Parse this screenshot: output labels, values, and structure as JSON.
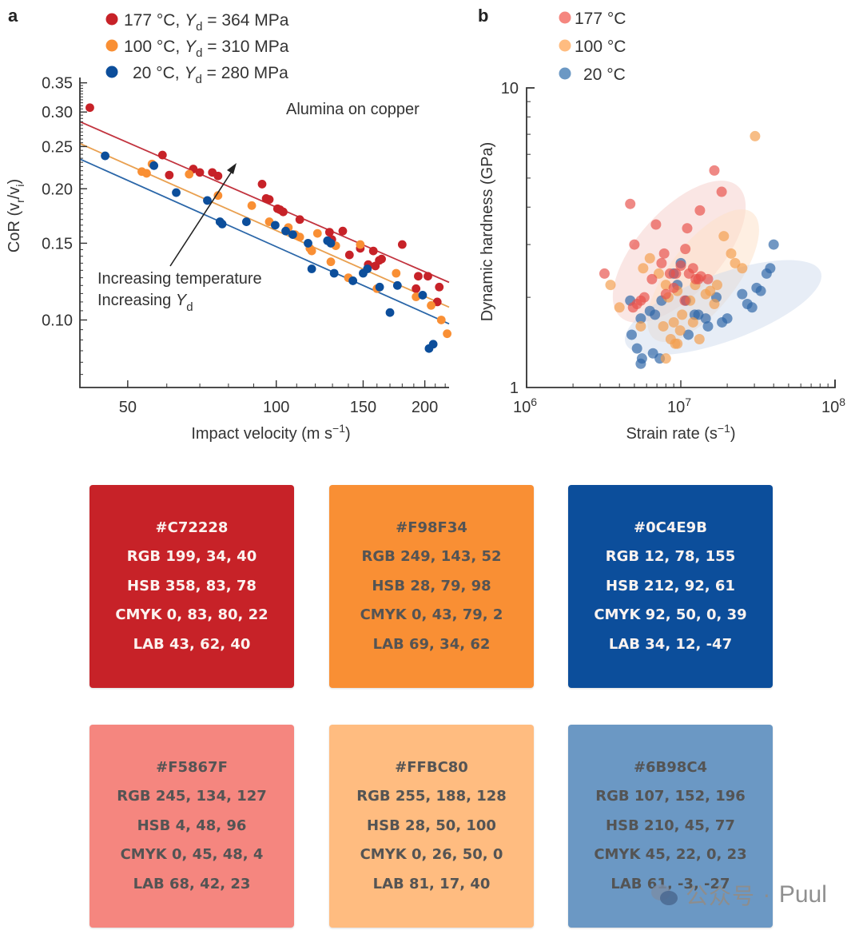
{
  "panel_labels": {
    "a": "a",
    "b": "b"
  },
  "chart_data": [
    {
      "type": "scatter",
      "id": "panel-a",
      "title": "",
      "annotation": "Alumina on copper",
      "arrow_label_1": "Increasing temperature",
      "arrow_label_2_prefix": "Increasing ",
      "arrow_label_2_var": "Y",
      "arrow_label_2_sub": "d",
      "xlabel": "Impact velocity (m s",
      "xlabel_sup": "−1",
      "xlabel_end": ")",
      "ylabel": "CoR (v",
      "ylabel_sub1": "r",
      "ylabel_mid": "/v",
      "ylabel_sub2": "i",
      "ylabel_end": ")",
      "xscale": "log",
      "yscale": "log",
      "xlim": [
        40,
        224
      ],
      "ylim": [
        0.07,
        0.36
      ],
      "xticks": [
        {
          "value": 50,
          "label": "50"
        },
        {
          "value": 100,
          "label": "100"
        },
        {
          "value": 150,
          "label": "150"
        },
        {
          "value": 200,
          "label": "200"
        }
      ],
      "yticks": [
        {
          "value": 0.1,
          "label": "0.10"
        },
        {
          "value": 0.15,
          "label": "0.15"
        },
        {
          "value": 0.2,
          "label": "0.20"
        },
        {
          "value": 0.25,
          "label": "0.25"
        },
        {
          "value": 0.3,
          "label": "0.30"
        },
        {
          "value": 0.35,
          "label": "0.35"
        }
      ],
      "legend_position": "top-left",
      "series": [
        {
          "name": "177 °C, Yd = 364 MPa",
          "legend_temp": "177 °C, ",
          "legend_yield": " = 364 MPa",
          "color": "#C72228",
          "fit": {
            "x": [
              40,
              224
            ],
            "y": [
              0.285,
              0.122
            ]
          },
          "points": [
            [
              41.9,
              0.307
            ],
            [
              58.8,
              0.239
            ],
            [
              60.7,
              0.215
            ],
            [
              67.9,
              0.222
            ],
            [
              70.0,
              0.218
            ],
            [
              74.2,
              0.218
            ],
            [
              76.2,
              0.214
            ],
            [
              93.6,
              0.205
            ],
            [
              95.4,
              0.19
            ],
            [
              96.8,
              0.189
            ],
            [
              100.6,
              0.18
            ],
            [
              101.8,
              0.179
            ],
            [
              103.3,
              0.177
            ],
            [
              111.6,
              0.17
            ],
            [
              128.2,
              0.159
            ],
            [
              129.6,
              0.153
            ],
            [
              136.4,
              0.16
            ],
            [
              140.7,
              0.141
            ],
            [
              148.0,
              0.146
            ],
            [
              153.6,
              0.134
            ],
            [
              157.3,
              0.144
            ],
            [
              158.8,
              0.133
            ],
            [
              161.7,
              0.137
            ],
            [
              163.5,
              0.138
            ],
            [
              180.0,
              0.149
            ],
            [
              194.0,
              0.126
            ],
            [
              202.9,
              0.126
            ],
            [
              192.0,
              0.118
            ],
            [
              214.0,
              0.119
            ],
            [
              212.0,
              0.11
            ]
          ]
        },
        {
          "name": "100 °C, Yd = 310 MPa",
          "legend_temp": "100 °C, ",
          "legend_yield": " = 310 MPa",
          "color": "#F98F34",
          "fit": {
            "x": [
              40,
              224
            ],
            "y": [
              0.254,
              0.107
            ]
          },
          "points": [
            [
              53.4,
              0.219
            ],
            [
              54.6,
              0.217
            ],
            [
              56.0,
              0.228
            ],
            [
              66.6,
              0.216
            ],
            [
              76.2,
              0.193
            ],
            [
              89.2,
              0.183
            ],
            [
              96.8,
              0.168
            ],
            [
              105.8,
              0.163
            ],
            [
              109.2,
              0.157
            ],
            [
              111.6,
              0.155
            ],
            [
              117.0,
              0.146
            ],
            [
              118.0,
              0.144
            ],
            [
              121.2,
              0.158
            ],
            [
              129.0,
              0.136
            ],
            [
              140.0,
              0.125
            ],
            [
              160.0,
              0.118
            ],
            [
              175.0,
              0.128
            ],
            [
              192.0,
              0.113
            ],
            [
              206.0,
              0.108
            ],
            [
              216.0,
              0.1
            ],
            [
              222.0,
              0.093
            ],
            [
              148.0,
              0.149
            ],
            [
              132.0,
              0.148
            ]
          ]
        },
        {
          "name": "20 °C, Yd = 280 MPa",
          "legend_temp": "20 °C, ",
          "legend_yield": " = 280 MPa",
          "color": "#0C4E9B",
          "fit": {
            "x": [
              40,
              224
            ],
            "y": [
              0.234,
              0.098
            ]
          },
          "points": [
            [
              45.0,
              0.238
            ],
            [
              56.5,
              0.226
            ],
            [
              62.7,
              0.196
            ],
            [
              72.5,
              0.188
            ],
            [
              76.9,
              0.168
            ],
            [
              77.7,
              0.166
            ],
            [
              87.0,
              0.168
            ],
            [
              99.5,
              0.165
            ],
            [
              104.5,
              0.16
            ],
            [
              108.0,
              0.157
            ],
            [
              116.0,
              0.15
            ],
            [
              118.0,
              0.131
            ],
            [
              127.0,
              0.152
            ],
            [
              129.0,
              0.15
            ],
            [
              131.0,
              0.128
            ],
            [
              143.0,
              0.123
            ],
            [
              150.0,
              0.128
            ],
            [
              153.0,
              0.131
            ],
            [
              162.0,
              0.119
            ],
            [
              170.0,
              0.104
            ],
            [
              176.0,
              0.12
            ],
            [
              198.0,
              0.114
            ],
            [
              204.0,
              0.086
            ],
            [
              208.0,
              0.088
            ]
          ]
        }
      ]
    },
    {
      "type": "scatter",
      "id": "panel-b",
      "title": "",
      "xlabel": "Strain rate (s",
      "xlabel_sup": "−1",
      "xlabel_end": ")",
      "ylabel": "Dynamic hardness (GPa)",
      "xscale": "log",
      "yscale": "log",
      "xlim": [
        1000000,
        100000000
      ],
      "ylim": [
        1,
        10
      ],
      "xticks": [
        {
          "value": 1000000,
          "base": "10",
          "exp": "6"
        },
        {
          "value": 10000000,
          "base": "10",
          "exp": "7"
        },
        {
          "value": 100000000,
          "base": "10",
          "exp": "8"
        }
      ],
      "yticks": [
        {
          "value": 1,
          "label": "1"
        },
        {
          "value": 10,
          "label": "10"
        }
      ],
      "legend_position": "top-left",
      "series": [
        {
          "name": "177 °C",
          "color": "#F5867F",
          "points": [
            [
              4700000.0,
              4.1
            ],
            [
              16500000.0,
              5.3
            ],
            [
              18400000.0,
              4.5
            ],
            [
              13300000.0,
              3.9
            ],
            [
              6900000.0,
              3.5
            ],
            [
              11000000.0,
              3.4
            ],
            [
              5000000.0,
              3.0
            ],
            [
              3200000.0,
              2.4
            ],
            [
              7800000.0,
              2.8
            ],
            [
              10700000.0,
              2.9
            ],
            [
              6500000.0,
              2.3
            ],
            [
              8500000.0,
              2.4
            ],
            [
              7500000.0,
              2.6
            ],
            [
              10000000.0,
              2.55
            ],
            [
              11300000.0,
              2.4
            ],
            [
              12000000.0,
              2.5
            ],
            [
              12500000.0,
              2.3
            ],
            [
              13500000.0,
              2.35
            ],
            [
              9000000.0,
              2.15
            ],
            [
              8000000.0,
              2.05
            ],
            [
              5800000.0,
              2.0
            ],
            [
              5200000.0,
              1.9
            ],
            [
              4900000.0,
              1.85
            ],
            [
              5500000.0,
              1.95
            ],
            [
              10600000.0,
              1.95
            ],
            [
              13000000.0,
              2.3
            ],
            [
              15000000.0,
              2.3
            ],
            [
              9300000.0,
              2.4
            ]
          ]
        },
        {
          "name": "100 °C",
          "color": "#FFBC80",
          "points": [
            [
              30300000.0,
              6.9
            ],
            [
              19000000.0,
              3.2
            ],
            [
              21200000.0,
              2.8
            ],
            [
              22500000.0,
              2.6
            ],
            [
              25000000.0,
              2.5
            ],
            [
              3500000.0,
              2.2
            ],
            [
              4000000.0,
              1.85
            ],
            [
              6300000.0,
              2.7
            ],
            [
              5700000.0,
              2.5
            ],
            [
              7200000.0,
              2.4
            ],
            [
              8000000.0,
              2.2
            ],
            [
              9500000.0,
              2.1
            ],
            [
              8300000.0,
              2.0
            ],
            [
              11500000.0,
              1.95
            ],
            [
              10200000.0,
              1.75
            ],
            [
              9000000.0,
              1.65
            ],
            [
              7700000.0,
              1.6
            ],
            [
              9900000.0,
              1.55
            ],
            [
              14500000.0,
              2.05
            ],
            [
              15500000.0,
              2.1
            ],
            [
              17200000.0,
              2.2
            ],
            [
              12400000.0,
              2.2
            ],
            [
              5500000.0,
              1.6
            ],
            [
              8600000.0,
              1.45
            ],
            [
              9200000.0,
              1.4
            ],
            [
              8000000.0,
              1.25
            ],
            [
              9500000.0,
              1.4
            ],
            [
              12000000.0,
              1.65
            ],
            [
              13200000.0,
              1.45
            ],
            [
              16500000.0,
              1.9
            ]
          ]
        },
        {
          "name": "20 °C",
          "color": "#6B98C4",
          "points": [
            [
              40000000.0,
              3.0
            ],
            [
              38000000.0,
              2.5
            ],
            [
              36000000.0,
              2.4
            ],
            [
              33000000.0,
              2.1
            ],
            [
              31000000.0,
              2.15
            ],
            [
              25000000.0,
              2.05
            ],
            [
              27000000.0,
              1.9
            ],
            [
              29000000.0,
              1.85
            ],
            [
              17000000.0,
              2.0
            ],
            [
              18500000.0,
              1.65
            ],
            [
              20000000.0,
              1.7
            ],
            [
              14500000.0,
              1.7
            ],
            [
              13000000.0,
              1.75
            ],
            [
              10800000.0,
              1.95
            ],
            [
              9500000.0,
              2.2
            ],
            [
              9000000.0,
              2.4
            ],
            [
              7500000.0,
              1.95
            ],
            [
              6300000.0,
              1.8
            ],
            [
              6800000.0,
              1.75
            ],
            [
              5500000.0,
              1.7
            ],
            [
              4800000.0,
              1.5
            ],
            [
              5200000.0,
              1.35
            ],
            [
              5600000.0,
              1.25
            ],
            [
              5500000.0,
              1.2
            ],
            [
              6600000.0,
              1.3
            ],
            [
              7300000.0,
              1.25
            ],
            [
              11200000.0,
              1.5
            ],
            [
              12300000.0,
              1.75
            ],
            [
              4700000.0,
              1.95
            ],
            [
              10000000.0,
              2.6
            ],
            [
              15000000.0,
              1.6
            ]
          ]
        }
      ],
      "ellipses": [
        {
          "series": "177 °C",
          "color": "#F5867F"
        },
        {
          "series": "100 °C",
          "color": "#FFBC80"
        },
        {
          "series": "20 °C",
          "color": "#6B98C4"
        }
      ]
    }
  ],
  "swatches": [
    {
      "hex": "#C72228",
      "rgb": "RGB 199, 34, 40",
      "hsb": "HSB 358, 83, 78",
      "cmyk": "CMYK 0, 83, 80, 22",
      "lab": "LAB 43, 62, 40",
      "text": "light"
    },
    {
      "hex": "#F98F34",
      "rgb": "RGB 249, 143, 52",
      "hsb": "HSB 28, 79, 98",
      "cmyk": "CMYK 0, 43, 79, 2",
      "lab": "LAB 69, 34, 62",
      "text": "dark"
    },
    {
      "hex": "#0C4E9B",
      "rgb": "RGB 12, 78, 155",
      "hsb": "HSB 212, 92, 61",
      "cmyk": "CMYK 92, 50, 0, 39",
      "lab": "LAB 34, 12, -47",
      "text": "light"
    },
    {
      "hex": "#F5867F",
      "rgb": "RGB 245, 134, 127",
      "hsb": "HSB 4, 48, 96",
      "cmyk": "CMYK 0, 45, 48, 4",
      "lab": "LAB 68, 42, 23",
      "text": "dark"
    },
    {
      "hex": "#FFBC80",
      "rgb": "RGB 255, 188, 128",
      "hsb": "HSB 28, 50, 100",
      "cmyk": "CMYK 0, 26, 50, 0",
      "lab": "LAB 81, 17, 40",
      "text": "dark"
    },
    {
      "hex": "#6B98C4",
      "rgb": "RGB 107, 152, 196",
      "hsb": "HSB 210, 45, 77",
      "cmyk": "CMYK 45, 22, 0, 23",
      "lab": "LAB 61, -3, -27",
      "text": "dark"
    }
  ],
  "watermark": {
    "text": "公众号 · ",
    "brand": "Puul"
  }
}
